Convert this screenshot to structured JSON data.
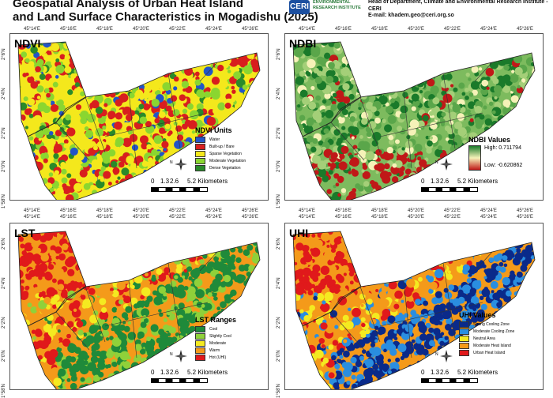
{
  "header": {
    "title_line1": "Geospatial Analysis of Urban Heat Island",
    "title_line2": "and Land Surface Characteristics in Mogadishu (2025)",
    "logo_mark": "CERI",
    "logo_text": "ENVIRONMENTAL RESEARCH INSTITUTE",
    "right_line1": "Head of Department, Climate and Environmental Research Institute - CERI",
    "right_line2": "E-mail: khadem.geo@ceri.org.so"
  },
  "longitude_ticks": [
    "45°14'E",
    "45°16'E",
    "45°18'E",
    "45°20'E",
    "45°22'E",
    "45°24'E",
    "45°26'E"
  ],
  "latitude_ticks": [
    "2°6'N",
    "2°4'N",
    "2°2'N",
    "2°0'N",
    "1°58'N"
  ],
  "north_label": "N",
  "scale_bar": {
    "ticks": [
      "0",
      "1.3",
      "2.6",
      "5.2 Kilometers"
    ]
  },
  "panels": {
    "ndvi": {
      "title": "NDVI",
      "legend_title": "NDVI Units",
      "classes": [
        {
          "label": "Water",
          "color": "#2255c8"
        },
        {
          "label": "Built-up / Bare",
          "color": "#d81e1e"
        },
        {
          "label": "Sparse Vegetation",
          "color": "#f4e81c"
        },
        {
          "label": "Moderate Vegetation",
          "color": "#8ad630"
        },
        {
          "label": "Dense Vegetation",
          "color": "#2a8a2a"
        }
      ]
    },
    "ndbi": {
      "title": "NDBI",
      "legend_title": "NDBI Values",
      "high_label": "High: 0.711794",
      "low_label": "Low: -0.620862",
      "colors": {
        "high": "#1a7a2a",
        "mid": "#f6f2b8",
        "low": "#c01818"
      }
    },
    "lst": {
      "title": "LST",
      "legend_title": "LST Ranges",
      "classes": [
        {
          "label": "Cool",
          "color": "#1f8a3a"
        },
        {
          "label": "Slightly Cool",
          "color": "#8fd13a"
        },
        {
          "label": "Moderate",
          "color": "#f4ea20"
        },
        {
          "label": "Warm",
          "color": "#f49a1a"
        },
        {
          "label": "Hot (UHI)",
          "color": "#e0191b"
        }
      ]
    },
    "uhi": {
      "title": "UHI",
      "legend_title": "UHI Values",
      "classes": [
        {
          "label": "Strong Cooling Zone",
          "color": "#0a2a8a"
        },
        {
          "label": "Moderate Cooling Zone",
          "color": "#2a8ee0"
        },
        {
          "label": "Neutral Area",
          "color": "#f4ea20"
        },
        {
          "label": "Moderate Heat Island",
          "color": "#f49a1a"
        },
        {
          "label": "Urban Heat Island",
          "color": "#e0191b"
        }
      ]
    }
  }
}
